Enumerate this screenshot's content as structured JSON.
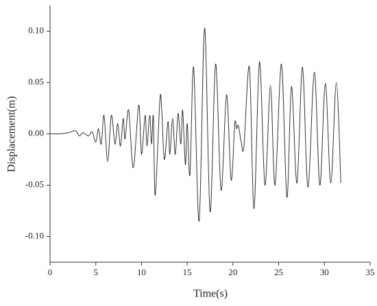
{
  "chart_data": {
    "type": "line",
    "xlabel": "Time(s)",
    "ylabel": "Displacement(m)",
    "xlim": [
      0,
      35
    ],
    "xticks": [
      0,
      5,
      10,
      15,
      20,
      25,
      30,
      35
    ],
    "ylim": [
      -0.125,
      0.125
    ],
    "yticks": [
      {
        "value": -0.1,
        "label": "-0.10"
      },
      -0.05,
      {
        "value": 0,
        "label": "0.00"
      },
      0.05,
      {
        "value": 0.1,
        "label": "0.10"
      }
    ],
    "series": [
      {
        "color": "#333333",
        "x": [
          0,
          1,
          2,
          2.8,
          3.2,
          3.6,
          4.2,
          4.6,
          5.0,
          5.3,
          5.6,
          5.9,
          6.3,
          6.7,
          7.1,
          7.4,
          7.7,
          8.0,
          8.2,
          8.6,
          9.1,
          9.7,
          10.0,
          10.4,
          10.6,
          10.9,
          11.1,
          11.3,
          11.5,
          12.0,
          12.2,
          12.5,
          12.9,
          13.1,
          13.4,
          13.7,
          14.0,
          14.3,
          14.5,
          14.8,
          15.0,
          15.3,
          15.7,
          16.3,
          16.9,
          17.5,
          18.1,
          18.7,
          19.3,
          19.8,
          20.2,
          20.4,
          20.6,
          20.9,
          21.2,
          21.8,
          22.3,
          22.9,
          23.5,
          24.1,
          24.6,
          25.3,
          25.9,
          26.4,
          27.0,
          27.6,
          28.2,
          28.9,
          29.5,
          30.1,
          30.7,
          31.3,
          31.8
        ],
        "values": [
          0,
          0,
          0.001,
          0.003,
          -0.002,
          0.001,
          -0.002,
          0.002,
          -0.008,
          0.005,
          -0.01,
          0.018,
          -0.027,
          0.018,
          -0.01,
          0.01,
          -0.012,
          0.015,
          -0.005,
          0.023,
          -0.033,
          0.028,
          -0.02,
          0.018,
          -0.012,
          0.018,
          -0.01,
          0.017,
          -0.06,
          0.032,
          0.025,
          -0.025,
          0.012,
          -0.02,
          0.015,
          -0.02,
          0.02,
          -0.01,
          0.023,
          -0.03,
          0.01,
          -0.04,
          0.065,
          -0.085,
          0.103,
          -0.076,
          0.068,
          -0.055,
          0.038,
          -0.045,
          0.01,
          0.005,
          0.008,
          -0.008,
          -0.012,
          0.065,
          -0.073,
          0.07,
          -0.05,
          0.047,
          -0.05,
          0.068,
          -0.062,
          0.046,
          -0.048,
          0.065,
          -0.052,
          0.06,
          -0.05,
          0.049,
          -0.048,
          0.05,
          -0.048
        ]
      }
    ]
  }
}
